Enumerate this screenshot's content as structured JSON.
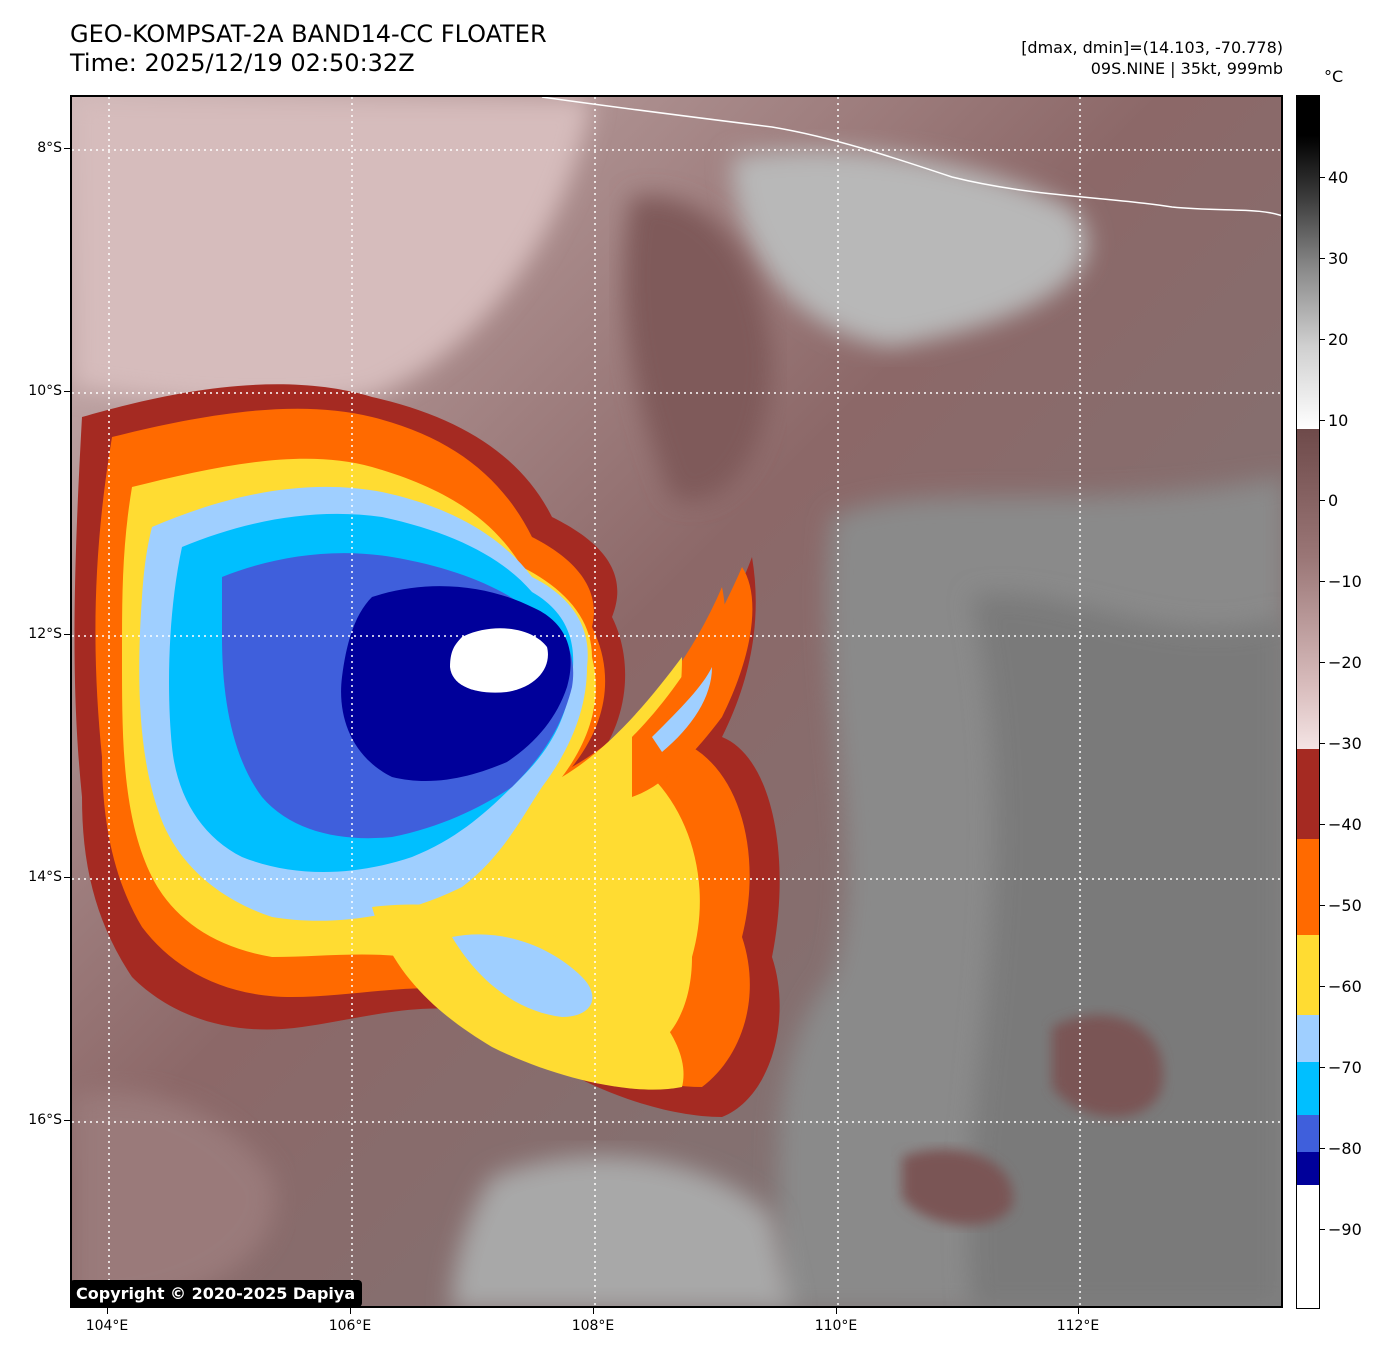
{
  "header": {
    "title_line1": "GEO-KOMPSAT-2A BAND14-CC FLOATER",
    "title_line2": "Time: 2025/12/19 02:50:32Z",
    "range_text": "[dmax, dmin]=(14.103, -70.778)",
    "storm_text": "09S.NINE | 35kt, 999mb"
  },
  "map": {
    "lat_labels": [
      "8°S",
      "10°S",
      "12°S",
      "14°S",
      "16°S"
    ],
    "lon_labels": [
      "104°E",
      "106°E",
      "108°E",
      "110°E",
      "112°E"
    ],
    "copyright": "Copyright © 2020-2025 Dapiya"
  },
  "colorbar": {
    "unit": "°C",
    "tick_labels": [
      "40",
      "30",
      "20",
      "10",
      "0",
      "−10",
      "−20",
      "−30",
      "−40",
      "−50",
      "−60",
      "−70",
      "−80",
      "−90"
    ],
    "colors": {
      "white_cold": "#ffffff",
      "navy": "#00009a",
      "royal_blue": "#3f5fdc",
      "cyan": "#00bfff",
      "light_blue": "#9fcfff",
      "yellow": "#ffdc32",
      "orange": "#ff6a00",
      "dark_red": "#a52a22",
      "pink_warm": "#f2dcdc",
      "brown": "#6e4a4a",
      "gray_light": "#f0f0f0",
      "black": "#000000"
    }
  }
}
